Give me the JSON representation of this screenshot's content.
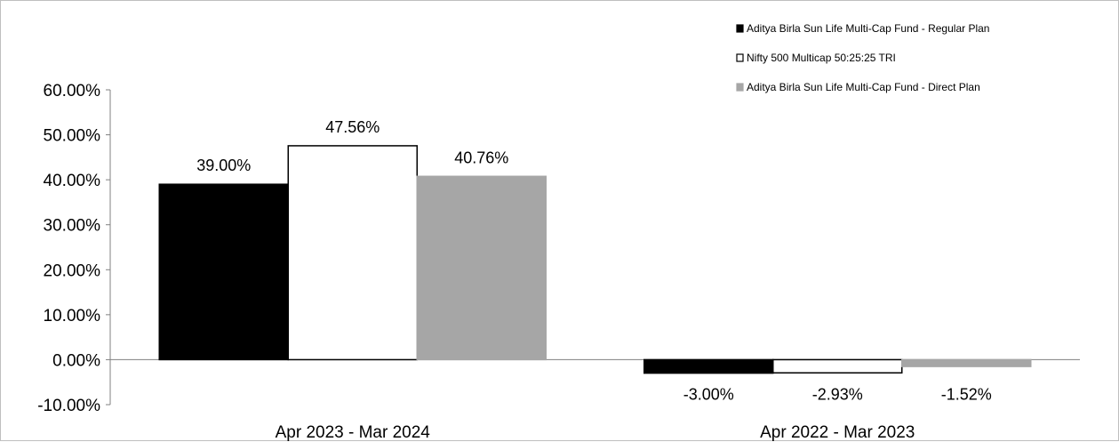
{
  "chart_data": {
    "type": "bar",
    "title": "",
    "xlabel": "",
    "ylabel": "",
    "categories": [
      "Apr 2023 - Mar 2024",
      "Apr 2022 - Mar 2023"
    ],
    "series": [
      {
        "name": "Aditya Birla Sun Life Multi-Cap Fund - Regular Plan",
        "values": [
          39.0,
          -3.0
        ],
        "labels": [
          "39.00%",
          "-3.00%"
        ],
        "color": "#000000",
        "outline": "#000000"
      },
      {
        "name": "Nifty 500 Multicap 50:25:25 TRI",
        "values": [
          47.56,
          -2.93
        ],
        "labels": [
          "47.56%",
          "-2.93%"
        ],
        "color": "#ffffff",
        "outline": "#000000"
      },
      {
        "name": "Aditya Birla Sun Life Multi-Cap Fund - Direct Plan",
        "values": [
          40.76,
          -1.52
        ],
        "labels": [
          "40.76%",
          "-1.52%"
        ],
        "color": "#a6a6a6",
        "outline": "#a6a6a6"
      }
    ],
    "ylim": [
      -10,
      60
    ],
    "yticks": [
      60,
      50,
      40,
      30,
      20,
      10,
      0,
      -10
    ],
    "ytick_labels": [
      "60.00%",
      "50.00%",
      "40.00%",
      "30.00%",
      "20.00%",
      "10.00%",
      "0.00%",
      "-10.00%"
    ],
    "grid": false,
    "legend_position": "top-right"
  }
}
